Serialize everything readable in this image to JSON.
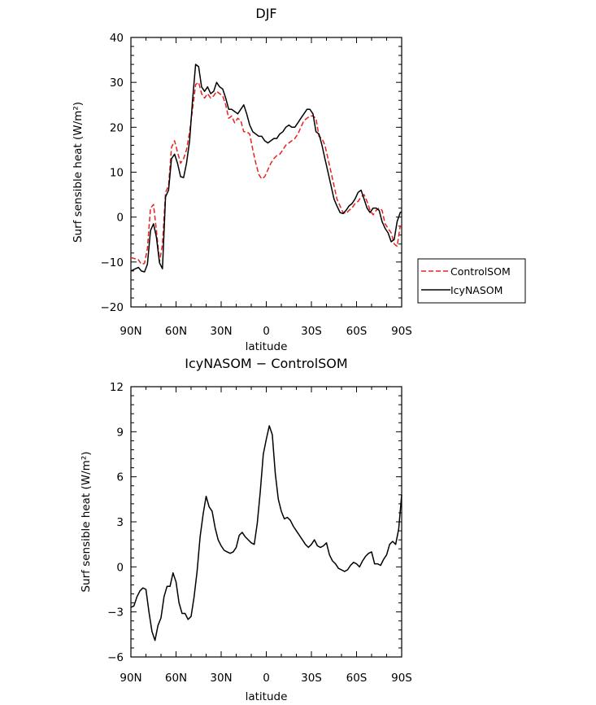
{
  "chart_data": [
    {
      "type": "line",
      "title": "DJF",
      "xlabel": "latitude",
      "ylabel": "Surf sensible heat (W/m²)",
      "xlim": [
        90,
        -90
      ],
      "ylim": [
        -20,
        40
      ],
      "xticks": [
        90,
        60,
        30,
        0,
        -30,
        -60,
        -90
      ],
      "xtick_labels": [
        "90N",
        "60N",
        "30N",
        "0",
        "30S",
        "60S",
        "90S"
      ],
      "yticks": [
        -20,
        -10,
        0,
        10,
        20,
        30,
        40
      ],
      "ytick_labels": [
        "−20",
        "−10",
        "0",
        "10",
        "20",
        "30",
        "40"
      ],
      "legend_position": "outside-right",
      "series": [
        {
          "name": "ControlSOM",
          "color": "#e8211f",
          "dash": "dashed",
          "x": [
            90,
            87,
            85,
            83,
            81,
            79,
            77,
            75,
            73,
            71,
            69,
            67,
            65,
            63,
            61,
            59,
            57,
            55,
            53,
            51,
            49,
            47,
            45,
            43,
            41,
            39,
            37,
            35,
            33,
            31,
            29,
            27,
            25,
            23,
            21,
            19,
            17,
            15,
            13,
            11,
            9,
            7,
            5,
            3,
            1,
            -1,
            -3,
            -5,
            -7,
            -9,
            -11,
            -13,
            -15,
            -17,
            -19,
            -21,
            -23,
            -25,
            -27,
            -29,
            -31,
            -33,
            -35,
            -37,
            -39,
            -41,
            -43,
            -45,
            -47,
            -49,
            -51,
            -53,
            -55,
            -57,
            -59,
            -61,
            -63,
            -65,
            -67,
            -69,
            -71,
            -73,
            -75,
            -77,
            -79,
            -81,
            -83,
            -85,
            -87,
            -89,
            -90
          ],
          "y": [
            -9.0,
            -9.3,
            -9.5,
            -10.5,
            -10.3,
            -7.0,
            2.0,
            2.8,
            -3.0,
            -10.0,
            -6.0,
            5.5,
            7.0,
            15.5,
            17.0,
            14.5,
            12.0,
            13.0,
            15.0,
            19.0,
            24.0,
            29.5,
            30.0,
            27.5,
            26.5,
            27.5,
            26.5,
            27.0,
            28.0,
            27.5,
            27.0,
            25.0,
            22.0,
            22.5,
            21.0,
            22.0,
            21.5,
            19.0,
            19.0,
            18.5,
            15.0,
            12.0,
            9.5,
            8.5,
            9.0,
            10.5,
            12.0,
            13.0,
            13.7,
            14.0,
            15.0,
            16.0,
            16.5,
            17.0,
            17.5,
            18.5,
            20.0,
            21.5,
            22.0,
            22.5,
            22.5,
            22.0,
            18.0,
            17.5,
            16.0,
            13.0,
            10.0,
            7.0,
            4.0,
            2.5,
            1.0,
            0.8,
            1.5,
            2.0,
            3.0,
            3.5,
            4.5,
            5.0,
            3.5,
            1.5,
            0.5,
            1.5,
            2.0,
            1.5,
            -1.5,
            -2.5,
            -3.5,
            -6.0,
            -6.5,
            -2.0,
            -2.2
          ]
        },
        {
          "name": "IcyNASOM",
          "color": "#000000",
          "dash": "solid",
          "x": [
            90,
            87,
            85,
            83,
            81,
            79,
            77,
            75,
            73,
            71,
            69,
            67,
            65,
            63,
            61,
            59,
            57,
            55,
            53,
            51,
            49,
            47,
            45,
            43,
            41,
            39,
            37,
            35,
            33,
            31,
            29,
            27,
            25,
            23,
            21,
            19,
            17,
            15,
            13,
            11,
            9,
            7,
            5,
            3,
            1,
            -1,
            -3,
            -5,
            -7,
            -9,
            -11,
            -13,
            -15,
            -17,
            -19,
            -21,
            -23,
            -25,
            -27,
            -29,
            -31,
            -33,
            -35,
            -37,
            -39,
            -41,
            -43,
            -45,
            -47,
            -49,
            -51,
            -53,
            -55,
            -57,
            -59,
            -61,
            -63,
            -65,
            -67,
            -69,
            -71,
            -73,
            -75,
            -77,
            -79,
            -81,
            -83,
            -85,
            -87,
            -89,
            -90
          ],
          "y": [
            -12.0,
            -11.5,
            -11.2,
            -12.0,
            -12.2,
            -10.5,
            -3.0,
            -1.5,
            -4.5,
            -10.2,
            -11.5,
            4.5,
            6.0,
            13.0,
            14.0,
            12.0,
            9.0,
            8.8,
            12.0,
            17.0,
            26.0,
            34.0,
            33.5,
            29.0,
            28.0,
            29.0,
            27.5,
            28.0,
            30.0,
            29.0,
            28.5,
            26.5,
            24.0,
            24.0,
            23.5,
            23.0,
            24.0,
            25.0,
            23.0,
            20.5,
            19.0,
            18.5,
            18.0,
            18.0,
            17.0,
            16.5,
            17.0,
            17.5,
            17.5,
            18.5,
            19.0,
            20.0,
            20.5,
            20.0,
            20.0,
            21.0,
            22.0,
            23.0,
            24.0,
            24.0,
            23.0,
            19.0,
            18.5,
            16.0,
            13.0,
            10.0,
            7.0,
            4.0,
            2.5,
            1.0,
            0.8,
            1.5,
            2.5,
            3.0,
            4.0,
            5.5,
            6.0,
            4.0,
            2.0,
            1.0,
            2.0,
            2.0,
            1.5,
            -1.0,
            -2.5,
            -3.5,
            -5.5,
            -5.0,
            -1.0,
            1.0,
            1.2
          ]
        }
      ]
    },
    {
      "type": "line",
      "title": "IcyNASOM − ControlSOM",
      "xlabel": "latitude",
      "ylabel": "Surf sensible heat (W/m²)",
      "xlim": [
        90,
        -90
      ],
      "ylim": [
        -6,
        12
      ],
      "xticks": [
        90,
        60,
        30,
        0,
        -30,
        -60,
        -90
      ],
      "xtick_labels": [
        "90N",
        "60N",
        "30N",
        "0",
        "30S",
        "60S",
        "90S"
      ],
      "yticks": [
        -6,
        -3,
        0,
        3,
        6,
        9,
        12
      ],
      "ytick_labels": [
        "−6",
        "−3",
        "0",
        "3",
        "6",
        "9",
        "12"
      ],
      "series": [
        {
          "color": "#000000",
          "dash": "solid",
          "x": [
            90,
            88,
            86,
            84,
            82,
            80,
            78,
            76,
            74,
            72,
            70,
            68,
            66,
            64,
            62,
            60,
            58,
            56,
            54,
            52,
            50,
            48,
            46,
            44,
            42,
            40,
            38,
            36,
            34,
            32,
            30,
            28,
            26,
            24,
            22,
            20,
            18,
            16,
            14,
            12,
            10,
            8,
            6,
            4,
            2,
            0,
            -2,
            -4,
            -6,
            -8,
            -10,
            -12,
            -14,
            -16,
            -18,
            -20,
            -22,
            -24,
            -26,
            -28,
            -30,
            -32,
            -34,
            -36,
            -38,
            -40,
            -42,
            -44,
            -46,
            -48,
            -50,
            -52,
            -54,
            -56,
            -58,
            -60,
            -62,
            -64,
            -66,
            -68,
            -70,
            -72,
            -74,
            -76,
            -78,
            -80,
            -82,
            -84,
            -86,
            -88,
            -90
          ],
          "y": [
            -2.7,
            -2.6,
            -2.0,
            -1.6,
            -1.4,
            -1.5,
            -3.0,
            -4.3,
            -4.9,
            -3.9,
            -3.4,
            -2.0,
            -1.3,
            -1.3,
            -0.4,
            -1.0,
            -2.4,
            -3.1,
            -3.1,
            -3.5,
            -3.3,
            -2.0,
            -0.3,
            2.0,
            3.5,
            4.7,
            4.0,
            3.7,
            2.6,
            1.8,
            1.4,
            1.1,
            1.0,
            0.9,
            1.0,
            1.3,
            2.1,
            2.3,
            2.0,
            1.8,
            1.6,
            1.5,
            2.9,
            5.0,
            7.5,
            8.5,
            9.4,
            8.8,
            6.2,
            4.5,
            3.7,
            3.2,
            3.3,
            3.1,
            2.7,
            2.4,
            2.1,
            1.8,
            1.5,
            1.3,
            1.5,
            1.8,
            1.4,
            1.3,
            1.4,
            1.6,
            0.8,
            0.4,
            0.2,
            -0.1,
            -0.2,
            -0.3,
            -0.2,
            0.1,
            0.3,
            0.2,
            0.0,
            0.4,
            0.7,
            0.9,
            1.0,
            0.2,
            0.2,
            0.1,
            0.5,
            0.8,
            1.5,
            1.7,
            1.5,
            2.5,
            4.8
          ]
        }
      ]
    }
  ]
}
